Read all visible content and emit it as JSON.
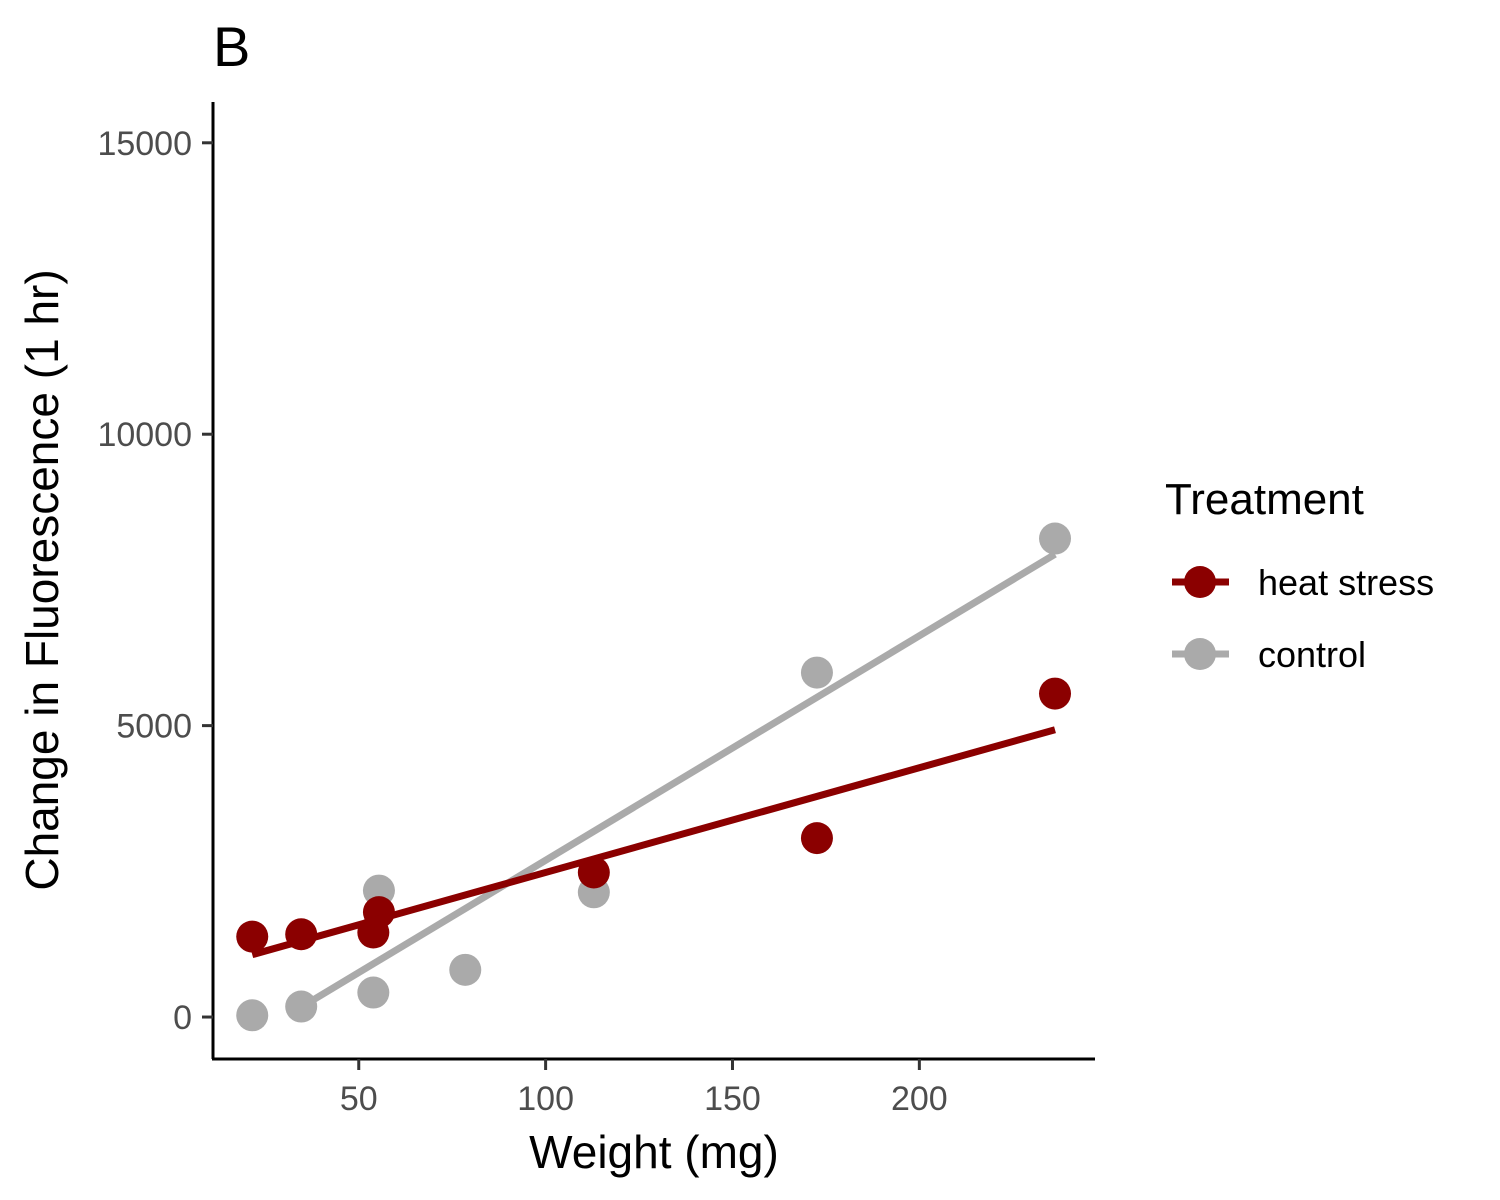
{
  "chart_data": {
    "type": "scatter",
    "panel_label": "B",
    "xlabel": "Weight (mg)",
    "ylabel": "Change in Fluorescence (1 hr)",
    "xlim": [
      11,
      247
    ],
    "ylim": [
      -720,
      15700
    ],
    "x_ticks": [
      50,
      100,
      150,
      200
    ],
    "y_ticks": [
      0,
      5000,
      10000,
      15000
    ],
    "x_tick_labels": [
      "50",
      "100",
      "150",
      "200"
    ],
    "y_tick_labels": [
      "0",
      "5000",
      "10000",
      "15000"
    ],
    "grid": false,
    "legend": {
      "title": "Treatment",
      "position": "right",
      "entries": [
        "heat stress",
        "control"
      ]
    },
    "series": [
      {
        "name": "heat stress",
        "color": "#8b0000",
        "points": [
          {
            "x": 21.5,
            "y": 1380
          },
          {
            "x": 34.6,
            "y": 1420
          },
          {
            "x": 53.9,
            "y": 1450
          },
          {
            "x": 55.4,
            "y": 1800
          },
          {
            "x": 112.9,
            "y": 2480
          },
          {
            "x": 172.6,
            "y": 3070
          },
          {
            "x": 236.3,
            "y": 5550
          }
        ],
        "fit_line": {
          "x": [
            21.5,
            236.3
          ],
          "y": [
            1070,
            4930
          ]
        }
      },
      {
        "name": "control",
        "color": "#aaaaaa",
        "points": [
          {
            "x": 21.5,
            "y": 30
          },
          {
            "x": 34.6,
            "y": 180
          },
          {
            "x": 53.9,
            "y": 420
          },
          {
            "x": 55.4,
            "y": 2170
          },
          {
            "x": 78.5,
            "y": 810
          },
          {
            "x": 112.9,
            "y": 2140
          },
          {
            "x": 172.6,
            "y": 5910
          },
          {
            "x": 236.3,
            "y": 8210
          }
        ],
        "fit_line": {
          "x": [
            34.6,
            236.3
          ],
          "y": [
            170,
            7940
          ]
        }
      }
    ]
  }
}
